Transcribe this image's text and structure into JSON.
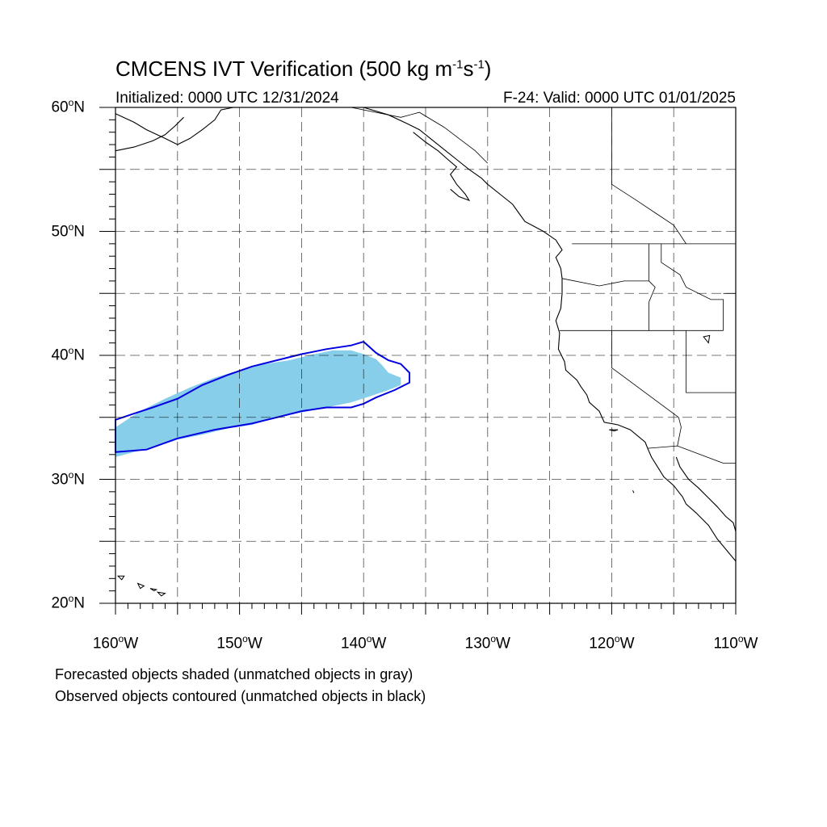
{
  "title_main": "CMCENS IVT Verification (500 kg m",
  "title_sup1": "-1",
  "title_mid": "s",
  "title_sup2": "-1",
  "title_end": ")",
  "initialized": "Initialized: 0000 UTC 12/31/2024",
  "valid": "F-24: Valid: 0000 UTC 01/01/2025",
  "caption_forecast": "Forecasted objects shaded (unmatched objects in gray)",
  "caption_observed": "Observed objects contoured (unmatched objects in black)",
  "colors": {
    "forecast_fill": "#87ceeb",
    "observed_contour": "#0000e0",
    "coastline": "#000000",
    "grid": "#000000"
  },
  "axes": {
    "lat_labels": [
      {
        "deg": "20",
        "suffix": "N"
      },
      {
        "deg": "30",
        "suffix": "N"
      },
      {
        "deg": "40",
        "suffix": "N"
      },
      {
        "deg": "50",
        "suffix": "N"
      },
      {
        "deg": "60",
        "suffix": "N"
      }
    ],
    "lon_labels": [
      {
        "deg": "160",
        "suffix": "W"
      },
      {
        "deg": "150",
        "suffix": "W"
      },
      {
        "deg": "140",
        "suffix": "W"
      },
      {
        "deg": "130",
        "suffix": "W"
      },
      {
        "deg": "120",
        "suffix": "W"
      },
      {
        "deg": "110",
        "suffix": "W"
      }
    ],
    "degree_symbol": "o"
  },
  "extent": {
    "lon_min": -160,
    "lon_max": -110,
    "lat_min": 20,
    "lat_max": 60
  },
  "forecast_object": {
    "name": "forecast-ivt-object",
    "polygon_lonlat": [
      [
        -160.0,
        31.8
      ],
      [
        -158.5,
        32.2
      ],
      [
        -156.5,
        32.7
      ],
      [
        -155.0,
        33.2
      ],
      [
        -153.0,
        33.6
      ],
      [
        -151.0,
        34.1
      ],
      [
        -149.0,
        34.4
      ],
      [
        -147.0,
        35.0
      ],
      [
        -145.0,
        35.4
      ],
      [
        -143.0,
        35.8
      ],
      [
        -141.0,
        36.2
      ],
      [
        -139.5,
        36.7
      ],
      [
        -138.0,
        37.2
      ],
      [
        -137.0,
        37.6
      ],
      [
        -137.0,
        38.2
      ],
      [
        -138.0,
        38.6
      ],
      [
        -138.5,
        39.2
      ],
      [
        -139.0,
        39.7
      ],
      [
        -140.0,
        40.1
      ],
      [
        -141.0,
        40.4
      ],
      [
        -142.5,
        40.4
      ],
      [
        -144.0,
        40.1
      ],
      [
        -146.0,
        39.6
      ],
      [
        -148.0,
        39.3
      ],
      [
        -150.0,
        38.8
      ],
      [
        -152.0,
        38.2
      ],
      [
        -154.0,
        37.4
      ],
      [
        -156.0,
        36.5
      ],
      [
        -158.0,
        35.5
      ],
      [
        -160.0,
        34.2
      ]
    ]
  },
  "observed_object": {
    "name": "observed-ivt-contour",
    "polygon_lonlat": [
      [
        -160.0,
        32.2
      ],
      [
        -157.5,
        32.4
      ],
      [
        -155.0,
        33.3
      ],
      [
        -152.0,
        34.0
      ],
      [
        -149.0,
        34.5
      ],
      [
        -147.0,
        35.0
      ],
      [
        -145.0,
        35.5
      ],
      [
        -143.0,
        35.8
      ],
      [
        -141.0,
        35.8
      ],
      [
        -140.0,
        36.1
      ],
      [
        -139.0,
        36.6
      ],
      [
        -137.5,
        37.2
      ],
      [
        -136.3,
        37.8
      ],
      [
        -136.3,
        38.6
      ],
      [
        -137.0,
        39.3
      ],
      [
        -138.0,
        39.6
      ],
      [
        -139.0,
        40.2
      ],
      [
        -140.0,
        41.1
      ],
      [
        -141.0,
        40.8
      ],
      [
        -143.0,
        40.5
      ],
      [
        -145.0,
        40.1
      ],
      [
        -147.0,
        39.6
      ],
      [
        -149.0,
        39.1
      ],
      [
        -151.0,
        38.4
      ],
      [
        -153.0,
        37.6
      ],
      [
        -155.0,
        36.5
      ],
      [
        -157.0,
        35.8
      ],
      [
        -158.5,
        35.3
      ],
      [
        -160.0,
        34.8
      ]
    ]
  },
  "coastlines": [
    {
      "name": "north-america-coastline",
      "points_lonlat": [
        [
          -140.0,
          60.0
        ],
        [
          -138.0,
          59.4
        ],
        [
          -136.5,
          58.7
        ],
        [
          -135.5,
          58.2
        ],
        [
          -134.5,
          57.4
        ],
        [
          -133.5,
          56.6
        ],
        [
          -132.5,
          55.8
        ],
        [
          -131.5,
          55.0
        ],
        [
          -130.5,
          54.3
        ],
        [
          -130.0,
          53.8
        ],
        [
          -129.0,
          53.0
        ],
        [
          -128.0,
          52.2
        ],
        [
          -127.5,
          51.5
        ],
        [
          -127.0,
          50.8
        ],
        [
          -125.5,
          50.0
        ],
        [
          -124.5,
          49.3
        ],
        [
          -124.0,
          48.5
        ],
        [
          -124.5,
          47.9
        ],
        [
          -124.1,
          47.0
        ],
        [
          -124.0,
          46.2
        ],
        [
          -124.0,
          45.0
        ],
        [
          -124.1,
          43.8
        ],
        [
          -124.5,
          42.8
        ],
        [
          -124.2,
          41.8
        ],
        [
          -124.3,
          40.5
        ],
        [
          -123.8,
          39.5
        ],
        [
          -123.7,
          38.8
        ],
        [
          -122.8,
          38.0
        ],
        [
          -122.5,
          37.5
        ],
        [
          -122.0,
          36.8
        ],
        [
          -121.8,
          36.2
        ],
        [
          -121.0,
          35.5
        ],
        [
          -120.6,
          34.6
        ],
        [
          -119.5,
          34.4
        ],
        [
          -118.5,
          34.0
        ],
        [
          -117.3,
          33.0
        ],
        [
          -117.1,
          32.5
        ],
        [
          -116.8,
          31.8
        ],
        [
          -116.3,
          31.0
        ],
        [
          -115.8,
          30.2
        ],
        [
          -115.0,
          29.5
        ],
        [
          -114.3,
          28.6
        ],
        [
          -114.0,
          28.0
        ],
        [
          -113.2,
          27.3
        ],
        [
          -112.2,
          26.3
        ],
        [
          -111.5,
          25.2
        ],
        [
          -110.5,
          24.0
        ],
        [
          -110.0,
          23.4
        ]
      ]
    },
    {
      "name": "gulf-of-california-coastline",
      "points_lonlat": [
        [
          -114.8,
          31.8
        ],
        [
          -114.5,
          31.0
        ],
        [
          -113.8,
          30.0
        ],
        [
          -113.0,
          29.3
        ],
        [
          -112.2,
          28.5
        ],
        [
          -111.5,
          27.8
        ],
        [
          -110.8,
          27.0
        ],
        [
          -110.2,
          26.5
        ],
        [
          -110.0,
          25.8
        ]
      ]
    },
    {
      "name": "southeast-alaska-islands",
      "points_lonlat": [
        [
          -136.0,
          58.0
        ],
        [
          -135.0,
          57.2
        ],
        [
          -134.0,
          56.5
        ],
        [
          -133.2,
          55.8
        ],
        [
          -132.5,
          55.2
        ],
        [
          -133.0,
          54.6
        ],
        [
          -132.5,
          53.8
        ],
        [
          -131.8,
          53.0
        ],
        [
          -131.5,
          52.5
        ],
        [
          -132.3,
          52.8
        ],
        [
          -133.0,
          53.4
        ]
      ]
    },
    {
      "name": "alaska-peninsula-coastline",
      "points_lonlat": [
        [
          -160.0,
          59.5
        ],
        [
          -158.5,
          58.8
        ],
        [
          -157.5,
          58.2
        ],
        [
          -156.0,
          57.5
        ],
        [
          -155.0,
          57.0
        ],
        [
          -154.0,
          57.5
        ],
        [
          -153.0,
          58.2
        ],
        [
          -152.0,
          59.0
        ],
        [
          -151.5,
          59.8
        ],
        [
          -150.5,
          60.0
        ]
      ]
    },
    {
      "name": "alaska-peninsula-south",
      "points_lonlat": [
        [
          -160.0,
          56.5
        ],
        [
          -158.5,
          56.8
        ],
        [
          -157.0,
          57.3
        ],
        [
          -156.0,
          57.8
        ],
        [
          -155.2,
          58.5
        ],
        [
          -154.5,
          59.2
        ]
      ]
    }
  ],
  "borders": [
    {
      "name": "us-canada-border",
      "points_lonlat": [
        [
          -123.2,
          49.0
        ],
        [
          -110.0,
          49.0
        ]
      ]
    },
    {
      "name": "alaska-canada-border",
      "points_lonlat": [
        [
          -141.0,
          60.0
        ],
        [
          -137.0,
          59.2
        ],
        [
          -135.5,
          59.6
        ],
        [
          -133.5,
          58.4
        ],
        [
          -131.0,
          56.5
        ],
        [
          -130.0,
          55.5
        ]
      ]
    },
    {
      "name": "us-mexico-border",
      "points_lonlat": [
        [
          -117.1,
          32.5
        ],
        [
          -114.7,
          32.7
        ],
        [
          -111.0,
          31.3
        ],
        [
          -110.0,
          31.3
        ]
      ]
    },
    {
      "name": "washington-oregon-border",
      "points_lonlat": [
        [
          -124.0,
          46.2
        ],
        [
          -121.0,
          45.6
        ],
        [
          -119.0,
          46.0
        ],
        [
          -117.0,
          46.0
        ]
      ]
    },
    {
      "name": "idaho-west-border",
      "points_lonlat": [
        [
          -117.0,
          49.0
        ],
        [
          -117.0,
          46.0
        ],
        [
          -116.5,
          45.5
        ],
        [
          -117.0,
          44.3
        ],
        [
          -117.0,
          42.0
        ]
      ]
    },
    {
      "name": "oregon-california-border",
      "points_lonlat": [
        [
          -124.2,
          42.0
        ],
        [
          -111.0,
          42.0
        ]
      ]
    },
    {
      "name": "california-nevada-border",
      "points_lonlat": [
        [
          -120.0,
          42.0
        ],
        [
          -120.0,
          39.0
        ],
        [
          -114.6,
          35.0
        ]
      ]
    },
    {
      "name": "nevada-utah-border",
      "points_lonlat": [
        [
          -114.0,
          42.0
        ],
        [
          -114.0,
          37.0
        ],
        [
          -110.0,
          37.0
        ]
      ]
    },
    {
      "name": "montana-idaho-border",
      "points_lonlat": [
        [
          -116.0,
          49.0
        ],
        [
          -116.0,
          47.5
        ],
        [
          -114.5,
          46.5
        ],
        [
          -114.0,
          45.5
        ],
        [
          -112.0,
          44.5
        ],
        [
          -111.0,
          44.5
        ],
        [
          -111.0,
          42.0
        ]
      ]
    },
    {
      "name": "wyoming-border",
      "points_lonlat": [
        [
          -111.0,
          45.0
        ],
        [
          -110.0,
          45.0
        ]
      ]
    },
    {
      "name": "arizona-california-border",
      "points_lonlat": [
        [
          -114.6,
          35.0
        ],
        [
          -114.4,
          34.2
        ],
        [
          -114.7,
          32.7
        ]
      ]
    },
    {
      "name": "canada-bc-alberta-border",
      "points_lonlat": [
        [
          -120.0,
          60.0
        ],
        [
          -120.0,
          53.8
        ],
        [
          -118.0,
          52.5
        ],
        [
          -116.5,
          51.5
        ],
        [
          -115.0,
          50.5
        ],
        [
          -114.0,
          49.0
        ]
      ]
    }
  ],
  "islands": [
    {
      "name": "hawaii-islands",
      "points_lonlat": [
        [
          -159.8,
          22.2
        ],
        [
          -159.3,
          22.2
        ],
        [
          -159.5,
          21.9
        ],
        [
          -159.8,
          22.2
        ]
      ]
    },
    {
      "name": "oahu-island",
      "points_lonlat": [
        [
          -158.2,
          21.6
        ],
        [
          -157.7,
          21.4
        ],
        [
          -158.0,
          21.2
        ],
        [
          -158.2,
          21.6
        ]
      ]
    },
    {
      "name": "maui-island",
      "points_lonlat": [
        [
          -156.6,
          20.9
        ],
        [
          -156.0,
          20.8
        ],
        [
          -156.3,
          20.6
        ],
        [
          -156.6,
          20.9
        ]
      ]
    },
    {
      "name": "molokai-island",
      "points_lonlat": [
        [
          -157.2,
          21.2
        ],
        [
          -156.7,
          21.1
        ],
        [
          -156.9,
          21.0
        ],
        [
          -157.2,
          21.2
        ]
      ]
    },
    {
      "name": "channel-islands",
      "points_lonlat": [
        [
          -120.2,
          34.0
        ],
        [
          -119.5,
          34.0
        ],
        [
          -119.8,
          33.9
        ],
        [
          -120.2,
          34.0
        ]
      ]
    },
    {
      "name": "great-salt-lake",
      "points_lonlat": [
        [
          -112.6,
          41.5
        ],
        [
          -112.1,
          41.6
        ],
        [
          -112.2,
          41.0
        ],
        [
          -112.6,
          41.5
        ]
      ]
    },
    {
      "name": "guadalupe-island",
      "points_lonlat": [
        [
          -118.3,
          29.1
        ],
        [
          -118.2,
          28.9
        ],
        [
          -118.3,
          29.1
        ]
      ]
    }
  ]
}
